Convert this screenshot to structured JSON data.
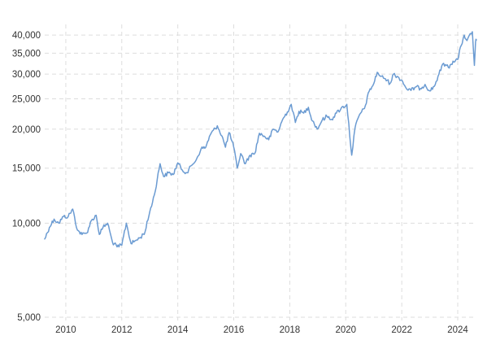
{
  "chart_data": {
    "type": "line",
    "title": "",
    "xlabel": "",
    "ylabel": "",
    "y_scale": "log",
    "ylim": [
      5000,
      42000
    ],
    "xlim": [
      "2009-04-01",
      "2024-09-01"
    ],
    "grid": true,
    "legend": "none",
    "series_color": "#6b9bd2",
    "y_ticks": [
      {
        "value": 5000,
        "label": "5,000"
      },
      {
        "value": 10000,
        "label": "10,000"
      },
      {
        "value": 15000,
        "label": "15,000"
      },
      {
        "value": 20000,
        "label": "20,000"
      },
      {
        "value": 25000,
        "label": "25,000"
      },
      {
        "value": 30000,
        "label": "30,000"
      },
      {
        "value": 35000,
        "label": "35,000"
      },
      {
        "value": 40000,
        "label": "40,000"
      }
    ],
    "x_ticks": [
      {
        "value": "2010-01-01",
        "label": "2010"
      },
      {
        "value": "2012-01-01",
        "label": "2012"
      },
      {
        "value": "2014-01-01",
        "label": "2014"
      },
      {
        "value": "2016-01-01",
        "label": "2016"
      },
      {
        "value": "2018-01-01",
        "label": "2018"
      },
      {
        "value": "2020-01-01",
        "label": "2020"
      },
      {
        "value": "2022-01-01",
        "label": "2022"
      },
      {
        "value": "2024-01-01",
        "label": "2024"
      }
    ],
    "series": [
      {
        "x": [
          "2009-04-01",
          "2009-06-01",
          "2009-08-01",
          "2009-10-01",
          "2009-12-01",
          "2010-02-01",
          "2010-04-01",
          "2010-06-01",
          "2010-08-01",
          "2010-10-01",
          "2010-12-01",
          "2011-02-01",
          "2011-03-15",
          "2011-05-01",
          "2011-07-01",
          "2011-09-01",
          "2011-11-01",
          "2012-01-01",
          "2012-03-01",
          "2012-05-01",
          "2012-07-01",
          "2012-09-01",
          "2012-11-01",
          "2013-01-01",
          "2013-03-01",
          "2013-05-15",
          "2013-07-01",
          "2013-09-01",
          "2013-11-01",
          "2014-01-01",
          "2014-03-01",
          "2014-05-01",
          "2014-07-01",
          "2014-09-01",
          "2014-11-01",
          "2015-01-01",
          "2015-03-01",
          "2015-06-01",
          "2015-08-01",
          "2015-09-15",
          "2015-11-01",
          "2016-01-01",
          "2016-02-15",
          "2016-04-01",
          "2016-06-01",
          "2016-08-01",
          "2016-10-01",
          "2016-12-01",
          "2017-02-01",
          "2017-04-01",
          "2017-06-01",
          "2017-08-01",
          "2017-10-01",
          "2017-12-01",
          "2018-01-20",
          "2018-03-15",
          "2018-05-01",
          "2018-07-01",
          "2018-09-01",
          "2018-10-01",
          "2018-12-25",
          "2019-03-01",
          "2019-05-01",
          "2019-07-01",
          "2019-09-01",
          "2019-11-01",
          "2020-01-15",
          "2020-03-19",
          "2020-05-01",
          "2020-07-01",
          "2020-09-01",
          "2020-11-01",
          "2021-01-01",
          "2021-02-15",
          "2021-04-01",
          "2021-06-01",
          "2021-08-01",
          "2021-09-15",
          "2021-11-01",
          "2022-01-01",
          "2022-03-01",
          "2022-05-01",
          "2022-07-01",
          "2022-09-01",
          "2022-11-01",
          "2023-01-01",
          "2023-03-01",
          "2023-05-01",
          "2023-07-01",
          "2023-09-01",
          "2023-11-01",
          "2024-01-01",
          "2024-02-15",
          "2024-03-25",
          "2024-05-01",
          "2024-07-10",
          "2024-08-05",
          "2024-08-20",
          "2024-09-01"
        ],
        "y": [
          8900,
          9700,
          10300,
          10000,
          10500,
          10500,
          11100,
          9500,
          9200,
          9300,
          10200,
          10600,
          9200,
          9700,
          10000,
          8700,
          8400,
          8500,
          10000,
          8600,
          8800,
          9000,
          9400,
          10900,
          12300,
          15500,
          14100,
          14500,
          14300,
          15600,
          14800,
          14500,
          15300,
          16000,
          17300,
          17500,
          19200,
          20500,
          19000,
          17500,
          19500,
          17500,
          15000,
          16700,
          15500,
          16500,
          16700,
          19400,
          19000,
          18500,
          20000,
          19600,
          21500,
          22700,
          24000,
          21000,
          22800,
          22500,
          23500,
          22000,
          20000,
          21400,
          22000,
          21500,
          22500,
          23300,
          24000,
          16500,
          20200,
          22300,
          23300,
          26400,
          28000,
          30400,
          29500,
          29000,
          28000,
          30000,
          29500,
          28700,
          27000,
          26600,
          27300,
          27000,
          27800,
          26500,
          27400,
          30000,
          32500,
          31500,
          33000,
          33400,
          37000,
          40000,
          38400,
          41000,
          32000,
          38000,
          38600
        ],
        "color": "#6b9bd2"
      }
    ]
  }
}
